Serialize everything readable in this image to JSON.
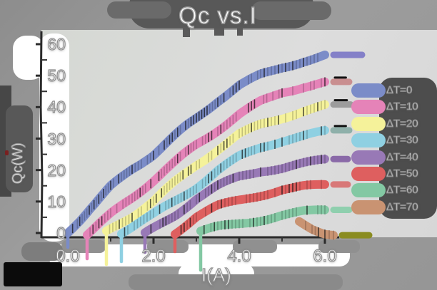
{
  "title": "Qc vs.I",
  "axes": {
    "xlabel": "I(A)",
    "ylabel": "Qc(W)",
    "x_ticks": [
      "0.0",
      "2.0",
      "4.0",
      "6.0"
    ],
    "x_tick_values": [
      0,
      2,
      4,
      6
    ],
    "y_ticks": [
      "0",
      "10",
      "20",
      "30",
      "40",
      "50",
      "60"
    ],
    "y_tick_values": [
      0,
      10,
      20,
      30,
      40,
      50,
      60
    ],
    "xlim": [
      0,
      6.6
    ],
    "ylim": [
      0,
      60
    ],
    "axis_color": "#2b2b2b"
  },
  "chart_data": {
    "type": "line",
    "title": "Qc vs.I",
    "xlabel": "I(A)",
    "ylabel": "Qc(W)",
    "xlim": [
      0,
      6.6
    ],
    "ylim": [
      0,
      60
    ],
    "grid": false,
    "legend_position": "right",
    "series": [
      {
        "name": "ΔT=0",
        "color": "#7b8cc8",
        "cap_color": "#8480c8",
        "cap_len": 40,
        "cap_stripe": false,
        "points": [
          [
            0,
            0
          ],
          [
            0.5,
            8
          ],
          [
            1,
            15
          ],
          [
            1.5,
            20.5
          ],
          [
            2,
            25
          ],
          [
            2.5,
            30.5
          ],
          [
            3,
            36
          ],
          [
            3.5,
            42
          ],
          [
            4,
            47
          ],
          [
            4.5,
            50.5
          ],
          [
            5,
            53
          ],
          [
            5.5,
            55
          ],
          [
            6,
            56.5
          ]
        ]
      },
      {
        "name": "ΔT=10",
        "color": "#e583b8",
        "cap_color": "#c98f90",
        "cap_len": 22,
        "cap_stripe": true,
        "points": [
          [
            0.45,
            0
          ],
          [
            1,
            6
          ],
          [
            1.5,
            11
          ],
          [
            2,
            16.5
          ],
          [
            2.5,
            22
          ],
          [
            3,
            28
          ],
          [
            3.5,
            33
          ],
          [
            4,
            38
          ],
          [
            4.5,
            42
          ],
          [
            5,
            45
          ],
          [
            5.5,
            46.5
          ],
          [
            6,
            47.5
          ]
        ]
      },
      {
        "name": "ΔT=20",
        "color": "#f5f29a",
        "cap_color": "#9c9c9c",
        "cap_len": 24,
        "cap_stripe": true,
        "points": [
          [
            0.9,
            0
          ],
          [
            1.5,
            5
          ],
          [
            2,
            10
          ],
          [
            2.5,
            16
          ],
          [
            3,
            22
          ],
          [
            3.5,
            27
          ],
          [
            4,
            31.5
          ],
          [
            4.5,
            34.5
          ],
          [
            5,
            36.5
          ],
          [
            5.5,
            38.5
          ],
          [
            6,
            40
          ]
        ]
      },
      {
        "name": "ΔT=30",
        "color": "#8fd0e2",
        "cap_color": "#8fb0aa",
        "cap_len": 22,
        "cap_stripe": true,
        "points": [
          [
            1.25,
            0
          ],
          [
            2,
            6
          ],
          [
            2.5,
            10.5
          ],
          [
            3,
            15
          ],
          [
            3.5,
            20
          ],
          [
            4,
            24
          ],
          [
            4.5,
            27
          ],
          [
            5,
            29
          ],
          [
            5.5,
            30.5
          ],
          [
            6,
            32
          ]
        ]
      },
      {
        "name": "ΔT=40",
        "color": "#9879b6",
        "cap_color": "#8a6aa8",
        "cap_len": 20,
        "cap_stripe": false,
        "points": [
          [
            1.8,
            0
          ],
          [
            2.5,
            6
          ],
          [
            3,
            11
          ],
          [
            3.5,
            14.5
          ],
          [
            4,
            17.5
          ],
          [
            4.5,
            19.5
          ],
          [
            5,
            20.5
          ],
          [
            5.5,
            22
          ],
          [
            6,
            23.5
          ]
        ]
      },
      {
        "name": "ΔT=50",
        "color": "#de5f5f",
        "cap_color": "#d87878",
        "cap_len": 20,
        "cap_stripe": false,
        "points": [
          [
            2.5,
            0
          ],
          [
            3,
            5
          ],
          [
            3.5,
            8
          ],
          [
            4,
            10
          ],
          [
            4.5,
            12
          ],
          [
            5,
            14
          ],
          [
            5.5,
            15
          ],
          [
            6,
            15.5
          ]
        ]
      },
      {
        "name": "ΔT=60",
        "color": "#83c8a3",
        "cap_color": "#8fcfae",
        "cap_len": 22,
        "cap_stripe": false,
        "points": [
          [
            3.1,
            0
          ],
          [
            3.5,
            1.5
          ],
          [
            4,
            3
          ],
          [
            4.5,
            4.5
          ],
          [
            5,
            6
          ],
          [
            5.5,
            7
          ],
          [
            6,
            7.5
          ]
        ]
      },
      {
        "name": "ΔT=70",
        "color": "#c99372",
        "cap_color": "#8a8c20",
        "cap_len": 38,
        "cap_stripe": false,
        "points": [
          [
            5.4,
            4
          ],
          [
            5.7,
            2
          ],
          [
            6,
            0.5
          ],
          [
            6.2,
            0
          ]
        ]
      }
    ]
  },
  "legend": {
    "position": "right",
    "items": [
      "ΔT=0",
      "ΔT=10",
      "ΔT=20",
      "ΔT=30",
      "ΔT=40",
      "ΔT=50",
      "ΔT=60",
      "ΔT=70"
    ]
  },
  "decor": {
    "start_drips": [
      20,
      36,
      44,
      40,
      27,
      26,
      52,
      0
    ],
    "outer_bg": "#9a9a9a",
    "plot_bg": "#d9d9d9",
    "title_backdrop": "#585858",
    "legend_backdrop": "#4d4d4d",
    "text_color": "#ffffff"
  }
}
